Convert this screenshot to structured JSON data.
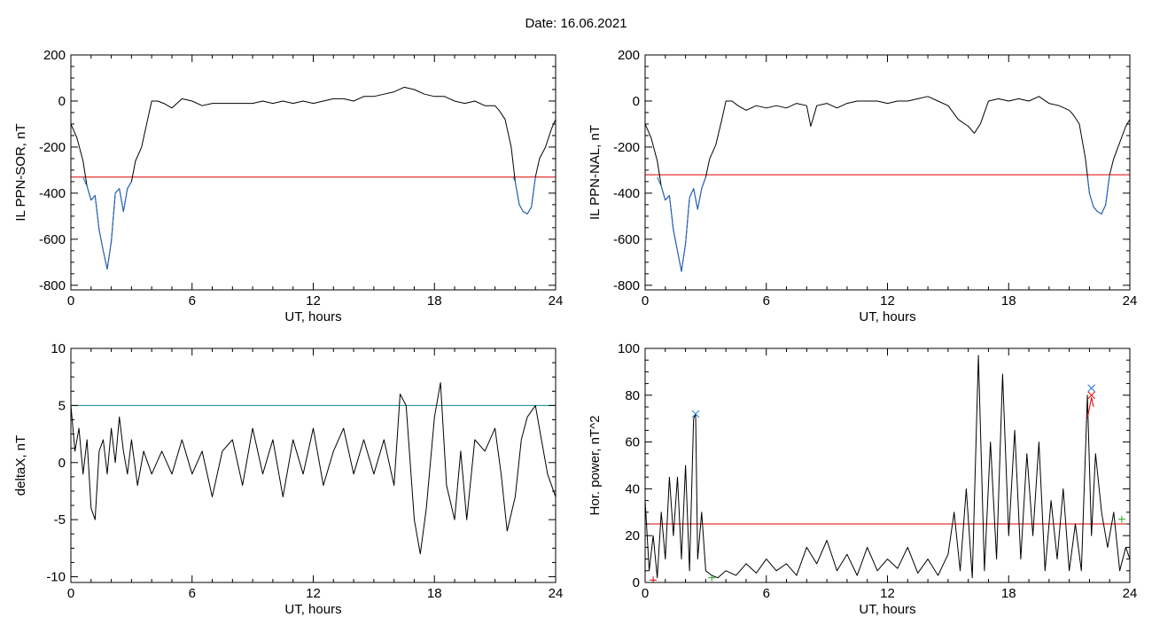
{
  "figure": {
    "title": "Date:  16.06.2021"
  },
  "chart_data": [
    {
      "id": "il-sor",
      "type": "line",
      "xlabel": "UT, hours",
      "ylabel": "IL PPN-SOR, nT",
      "xlim": [
        0,
        24
      ],
      "ylim": [
        -820,
        200
      ],
      "xticks": [
        0,
        6,
        12,
        18,
        24
      ],
      "yticks": [
        200,
        0,
        -200,
        -400,
        -600,
        -800
      ],
      "grid": false,
      "series": [
        {
          "color": "#000000",
          "x": [
            0,
            0.3,
            0.6,
            0.8,
            1.0,
            1.2,
            1.4,
            1.6,
            1.8,
            2.0,
            2.2,
            2.4,
            2.6,
            2.8,
            3.0,
            3.2,
            3.5,
            3.8,
            4.0,
            4.3,
            4.6,
            5.0,
            5.5,
            6.0,
            6.5,
            7.0,
            7.5,
            8.0,
            8.5,
            9.0,
            9.5,
            10.0,
            10.5,
            11.0,
            11.5,
            12.0,
            12.5,
            13.0,
            13.5,
            14.0,
            14.5,
            15.0,
            15.5,
            16.0,
            16.5,
            17.0,
            17.5,
            18.0,
            18.5,
            19.0,
            19.5,
            20.0,
            20.5,
            21.0,
            21.2,
            21.5,
            21.8,
            22.0,
            22.2,
            22.4,
            22.6,
            22.8,
            23.0,
            23.2,
            23.5,
            23.8,
            24.0
          ],
          "y": [
            -100,
            -160,
            -260,
            -370,
            -430,
            -410,
            -560,
            -650,
            -730,
            -610,
            -400,
            -380,
            -480,
            -380,
            -350,
            -260,
            -200,
            -80,
            0,
            0,
            -10,
            -30,
            10,
            0,
            -20,
            -10,
            -10,
            -10,
            -10,
            -10,
            0,
            -10,
            0,
            -10,
            0,
            -10,
            0,
            10,
            10,
            0,
            20,
            20,
            30,
            40,
            60,
            50,
            30,
            20,
            20,
            0,
            -10,
            0,
            -20,
            -20,
            -40,
            -80,
            -200,
            -350,
            -450,
            -480,
            -490,
            -460,
            -330,
            -250,
            -200,
            -120,
            -80
          ]
        },
        {
          "color": "#1f66c8",
          "x": [
            0.6,
            0.8,
            1.0,
            1.2,
            1.4,
            1.6,
            1.8,
            2.0,
            2.2,
            2.4,
            2.6,
            2.8,
            3.0
          ],
          "y": [
            -330,
            -370,
            -430,
            -410,
            -560,
            -650,
            -730,
            -610,
            -400,
            -380,
            -480,
            -380,
            -350
          ]
        },
        {
          "color": "#1f66c8",
          "x": [
            21.9,
            22.0,
            22.2,
            22.4,
            22.6,
            22.8,
            23.0
          ],
          "y": [
            -330,
            -350,
            -450,
            -480,
            -490,
            -460,
            -330
          ]
        }
      ],
      "threshold": {
        "y": -330,
        "color": "#e00000"
      }
    },
    {
      "id": "il-nal",
      "type": "line",
      "xlabel": "UT, hours",
      "ylabel": "IL PPN-NAL, nT",
      "xlim": [
        0,
        24
      ],
      "ylim": [
        -820,
        200
      ],
      "xticks": [
        0,
        6,
        12,
        18,
        24
      ],
      "yticks": [
        200,
        0,
        -200,
        -400,
        -600,
        -800
      ],
      "grid": false,
      "series": [
        {
          "color": "#000000",
          "x": [
            0,
            0.3,
            0.6,
            0.8,
            1.0,
            1.2,
            1.4,
            1.6,
            1.8,
            2.0,
            2.2,
            2.4,
            2.6,
            2.8,
            3.0,
            3.2,
            3.5,
            3.8,
            4.0,
            4.3,
            4.6,
            5.0,
            5.5,
            6.0,
            6.5,
            7.0,
            7.5,
            8.0,
            8.2,
            8.5,
            9.0,
            9.5,
            10.0,
            10.5,
            11.0,
            11.5,
            12.0,
            12.5,
            13.0,
            13.5,
            14.0,
            14.5,
            15.0,
            15.5,
            16.0,
            16.3,
            16.6,
            17.0,
            17.5,
            18.0,
            18.5,
            19.0,
            19.5,
            20.0,
            20.5,
            21.0,
            21.2,
            21.5,
            21.8,
            22.0,
            22.2,
            22.4,
            22.6,
            22.8,
            23.0,
            23.2,
            23.5,
            23.8,
            24.0
          ],
          "y": [
            -100,
            -160,
            -260,
            -370,
            -430,
            -410,
            -560,
            -650,
            -740,
            -620,
            -420,
            -380,
            -470,
            -380,
            -330,
            -250,
            -190,
            -80,
            0,
            0,
            -20,
            -40,
            -20,
            -30,
            -20,
            -30,
            -10,
            -20,
            -110,
            -20,
            -10,
            -30,
            -10,
            0,
            0,
            0,
            -10,
            0,
            0,
            10,
            20,
            0,
            -20,
            -80,
            -110,
            -140,
            -100,
            0,
            10,
            0,
            10,
            0,
            20,
            -10,
            -20,
            -40,
            -60,
            -100,
            -250,
            -400,
            -460,
            -480,
            -490,
            -450,
            -320,
            -250,
            -180,
            -110,
            -80
          ]
        },
        {
          "color": "#1f66c8",
          "x": [
            0.6,
            0.8,
            1.0,
            1.2,
            1.4,
            1.6,
            1.8,
            2.0,
            2.2,
            2.4,
            2.6,
            2.8,
            3.0
          ],
          "y": [
            -330,
            -370,
            -430,
            -410,
            -560,
            -650,
            -740,
            -620,
            -420,
            -380,
            -470,
            -380,
            -330
          ]
        },
        {
          "color": "#1f66c8",
          "x": [
            21.9,
            22.0,
            22.2,
            22.4,
            22.6,
            22.8,
            23.0
          ],
          "y": [
            -330,
            -400,
            -460,
            -480,
            -490,
            -450,
            -320
          ]
        }
      ],
      "threshold": {
        "y": -320,
        "color": "#e00000"
      }
    },
    {
      "id": "deltax",
      "type": "line",
      "xlabel": "UT, hours",
      "ylabel": "deltaX, nT",
      "xlim": [
        0,
        24
      ],
      "ylim": [
        -10.5,
        10
      ],
      "xticks": [
        0,
        6,
        12,
        18,
        24
      ],
      "yticks": [
        10,
        5,
        0,
        -5,
        -10
      ],
      "grid": false,
      "series": [
        {
          "color": "#000000",
          "x": [
            0,
            0.2,
            0.4,
            0.6,
            0.8,
            1.0,
            1.2,
            1.4,
            1.6,
            1.8,
            2.0,
            2.2,
            2.4,
            2.6,
            2.8,
            3.0,
            3.3,
            3.6,
            4.0,
            4.5,
            5.0,
            5.5,
            6.0,
            6.5,
            7.0,
            7.5,
            8.0,
            8.5,
            9.0,
            9.5,
            10.0,
            10.5,
            11.0,
            11.5,
            12.0,
            12.5,
            13.0,
            13.5,
            14.0,
            14.5,
            15.0,
            15.5,
            16.0,
            16.3,
            16.6,
            17.0,
            17.3,
            17.6,
            18.0,
            18.3,
            18.6,
            19.0,
            19.3,
            19.6,
            20.0,
            20.5,
            21.0,
            21.3,
            21.6,
            22.0,
            22.3,
            22.6,
            23.0,
            23.3,
            23.6,
            24.0
          ],
          "y": [
            5,
            1,
            3,
            -1,
            2,
            -4,
            -5,
            1,
            2,
            -1,
            3,
            0,
            4,
            1,
            -1,
            2,
            -2,
            1,
            -1,
            1,
            -1,
            2,
            -1,
            1,
            -3,
            1,
            2,
            -2,
            3,
            -1,
            2,
            -3,
            2,
            -1,
            3,
            -2,
            1,
            3,
            -1,
            2,
            -1,
            2,
            -2,
            6,
            5,
            -5,
            -8,
            -4,
            4,
            7,
            -2,
            -5,
            1,
            -5,
            2,
            1,
            3,
            -1,
            -6,
            -3,
            2,
            4,
            5,
            2,
            -1,
            -3
          ]
        }
      ],
      "threshold": {
        "y": 5,
        "color": "#0b8a8a"
      }
    },
    {
      "id": "hor-power",
      "type": "line",
      "xlabel": "UT, hours",
      "ylabel": "Hor. power, nT^2",
      "xlim": [
        0,
        24
      ],
      "ylim": [
        0,
        100
      ],
      "xticks": [
        0,
        6,
        12,
        18,
        24
      ],
      "yticks": [
        100,
        80,
        60,
        40,
        20,
        0
      ],
      "grid": false,
      "series": [
        {
          "color": "#000000",
          "x": [
            0,
            0.2,
            0.4,
            0.6,
            0.8,
            1.0,
            1.2,
            1.4,
            1.6,
            1.8,
            2.0,
            2.2,
            2.4,
            2.5,
            2.6,
            2.8,
            3.0,
            3.3,
            3.6,
            4.0,
            4.5,
            5.0,
            5.5,
            6.0,
            6.5,
            7.0,
            7.5,
            8.0,
            8.5,
            9.0,
            9.5,
            10.0,
            10.5,
            11.0,
            11.5,
            12.0,
            12.5,
            13.0,
            13.5,
            14.0,
            14.5,
            15.0,
            15.3,
            15.6,
            15.9,
            16.2,
            16.5,
            16.8,
            17.1,
            17.4,
            17.7,
            18.0,
            18.3,
            18.6,
            18.9,
            19.2,
            19.5,
            19.8,
            20.1,
            20.4,
            20.7,
            21.0,
            21.3,
            21.6,
            21.9,
            22.1,
            22.3,
            22.6,
            22.9,
            23.2,
            23.5,
            23.8,
            24.0
          ],
          "y": [
            35,
            5,
            20,
            2,
            30,
            10,
            45,
            20,
            45,
            10,
            50,
            5,
            70,
            72,
            10,
            30,
            5,
            3,
            2,
            5,
            3,
            8,
            4,
            10,
            5,
            8,
            3,
            15,
            8,
            18,
            5,
            12,
            3,
            15,
            5,
            10,
            6,
            15,
            4,
            10,
            3,
            12,
            30,
            5,
            40,
            2,
            97,
            5,
            60,
            10,
            89,
            20,
            65,
            10,
            55,
            20,
            60,
            5,
            35,
            10,
            40,
            5,
            25,
            5,
            80,
            20,
            55,
            30,
            15,
            30,
            5,
            15,
            10
          ]
        },
        {
          "color": "#e00000",
          "x": [
            21.9,
            22.1,
            22.2
          ],
          "y": [
            70,
            79,
            75
          ]
        }
      ],
      "threshold": {
        "y": 25,
        "color": "#e00000"
      },
      "markers": [
        {
          "x": 2.5,
          "y": 72,
          "symbol": "x",
          "color": "#1f78d6"
        },
        {
          "x": 22.1,
          "y": 83,
          "symbol": "x",
          "color": "#1f78d6"
        },
        {
          "x": 22.1,
          "y": 80,
          "symbol": "x",
          "color": "#e00000"
        },
        {
          "x": 23.6,
          "y": 27,
          "symbol": "+",
          "color": "#22aa22"
        },
        {
          "x": 3.3,
          "y": 2,
          "symbol": "+",
          "color": "#22aa22"
        },
        {
          "x": 0.4,
          "y": 1,
          "symbol": "+",
          "color": "#e00000"
        }
      ]
    }
  ]
}
